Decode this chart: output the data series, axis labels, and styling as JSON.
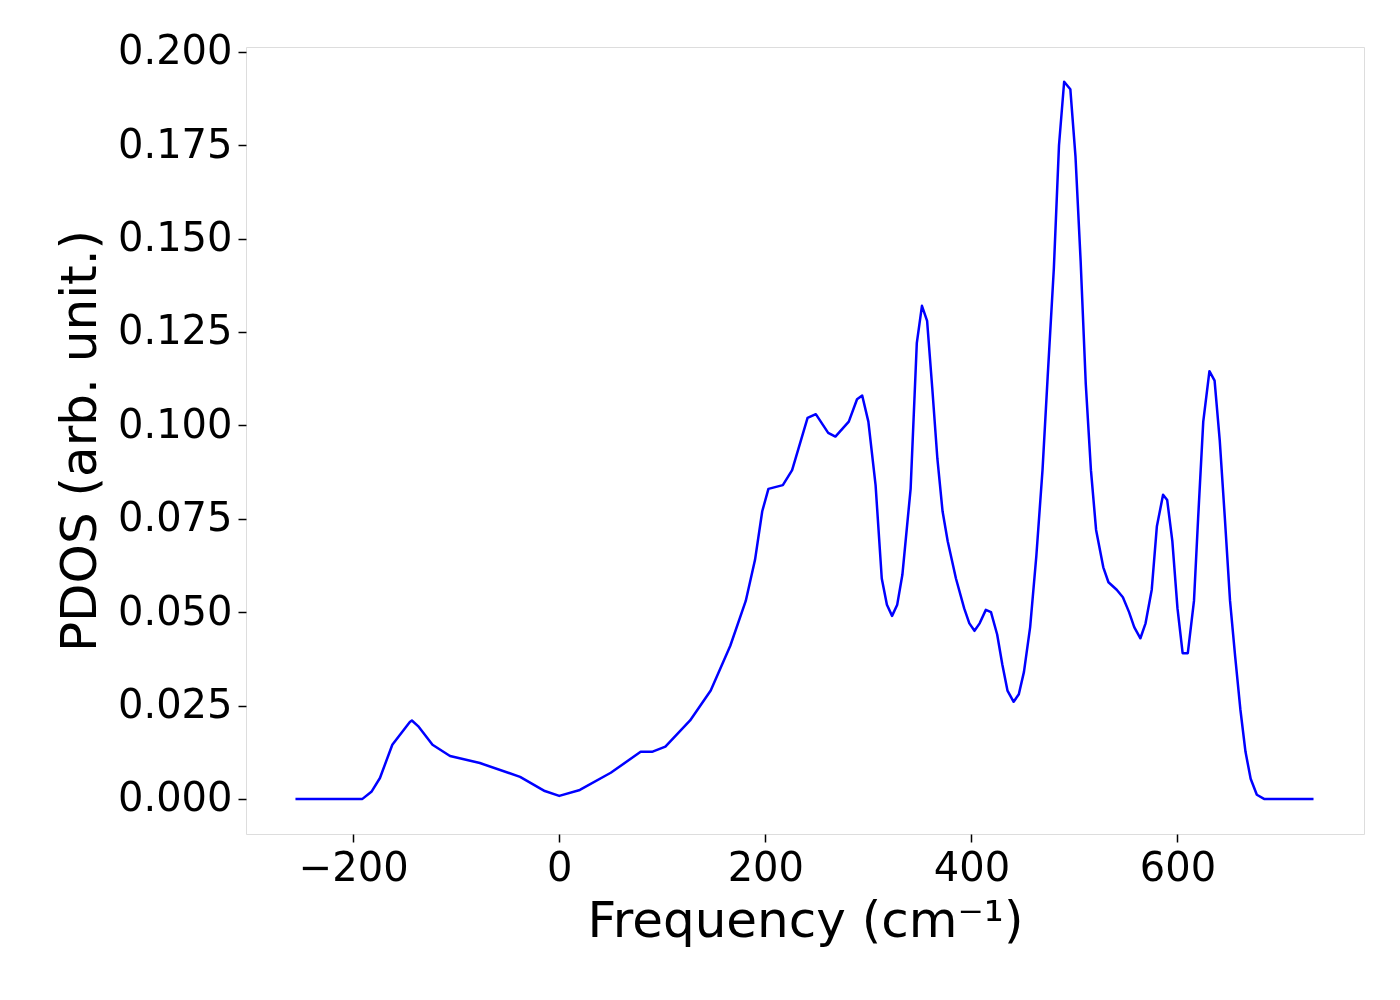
{
  "chart_data": {
    "type": "line",
    "xlabel": "Frequency (cm⁻¹)",
    "ylabel": "PDOS (arb. unit.)",
    "x": [
      -256,
      -191,
      -182,
      -174,
      -162,
      -145,
      -143,
      -137,
      -123,
      -106,
      -77,
      -38,
      -14,
      0,
      20,
      50,
      79,
      90,
      103,
      127,
      147,
      166,
      181,
      190,
      197,
      203,
      217,
      226,
      241,
      249,
      261,
      268,
      281,
      289,
      294,
      300,
      307,
      313,
      318,
      323,
      328,
      333,
      341,
      347,
      352,
      357,
      362,
      367,
      372,
      377,
      385,
      393,
      398,
      403,
      408,
      414,
      419,
      425,
      430,
      435,
      441,
      446,
      451,
      457,
      463,
      469,
      474,
      480,
      485,
      490,
      496,
      501,
      506,
      511,
      516,
      521,
      528,
      533,
      541,
      547,
      553,
      558,
      564,
      569,
      575,
      580,
      586,
      590,
      595,
      600,
      605,
      610,
      616,
      620,
      625,
      631,
      636,
      641,
      646,
      651,
      656,
      661,
      666,
      671,
      677,
      684,
      732
    ],
    "series": [
      {
        "color": "#0000ff",
        "values": [
          0,
          0,
          0.002,
          0.0056,
          0.0145,
          0.0206,
          0.021,
          0.0195,
          0.0145,
          0.0115,
          0.0096,
          0.0059,
          0.0021,
          0.0008,
          0.0024,
          0.007,
          0.0126,
          0.0126,
          0.014,
          0.021,
          0.029,
          0.041,
          0.053,
          0.064,
          0.077,
          0.083,
          0.084,
          0.088,
          0.102,
          0.103,
          0.098,
          0.097,
          0.101,
          0.107,
          0.108,
          0.101,
          0.084,
          0.059,
          0.052,
          0.049,
          0.052,
          0.06,
          0.083,
          0.122,
          0.132,
          0.128,
          0.11,
          0.091,
          0.077,
          0.069,
          0.059,
          0.051,
          0.047,
          0.045,
          0.047,
          0.0506,
          0.05,
          0.044,
          0.036,
          0.029,
          0.026,
          0.028,
          0.034,
          0.046,
          0.065,
          0.088,
          0.113,
          0.142,
          0.175,
          0.192,
          0.19,
          0.172,
          0.144,
          0.111,
          0.088,
          0.072,
          0.062,
          0.058,
          0.056,
          0.054,
          0.05,
          0.046,
          0.043,
          0.047,
          0.056,
          0.073,
          0.0814,
          0.08,
          0.069,
          0.051,
          0.039,
          0.039,
          0.053,
          0.075,
          0.101,
          0.1145,
          0.112,
          0.096,
          0.075,
          0.053,
          0.038,
          0.024,
          0.0126,
          0.0054,
          0.0011,
          0,
          0
        ]
      }
    ],
    "xlim": [
      -304,
      781
    ],
    "ylim": [
      -0.0094,
      0.2013
    ],
    "xticks": [
      -200,
      0,
      200,
      400,
      600
    ],
    "yticks": [
      {
        "value": 0,
        "label": "0.000"
      },
      {
        "value": 0.025,
        "label": "0.025"
      },
      {
        "value": 0.05,
        "label": "0.050"
      },
      {
        "value": 0.075,
        "label": "0.075"
      },
      {
        "value": 0.1,
        "label": "0.100"
      },
      {
        "value": 0.125,
        "label": "0.125"
      },
      {
        "value": 0.15,
        "label": "0.150"
      },
      {
        "value": 0.175,
        "label": "0.175"
      },
      {
        "value": 0.2,
        "label": "0.200"
      }
    ],
    "grid": false,
    "marker": "none",
    "line_style": "solid"
  }
}
